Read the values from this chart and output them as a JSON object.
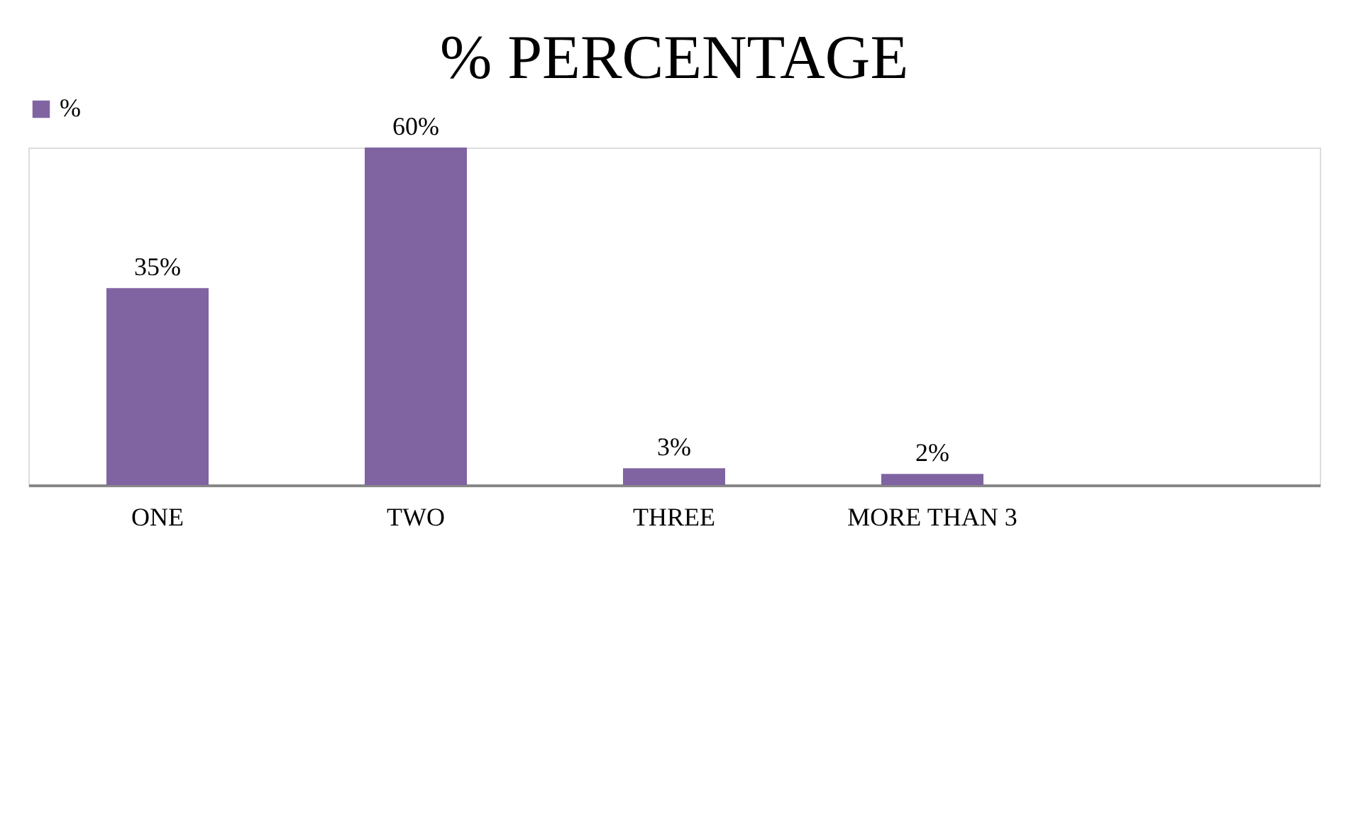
{
  "chart_data": {
    "type": "bar",
    "title": "% PERCENTAGE",
    "categories": [
      "ONE",
      "TWO",
      "THREE",
      "MORE THAN 3",
      null
    ],
    "series": [
      {
        "name": "%",
        "color": "#8064a2",
        "values": [
          35,
          60,
          3,
          2,
          null
        ],
        "value_labels": [
          "35%",
          "60%",
          "3%",
          "2%",
          null
        ]
      }
    ],
    "legend": "top",
    "grid": false,
    "tick_labels": "x"
  }
}
